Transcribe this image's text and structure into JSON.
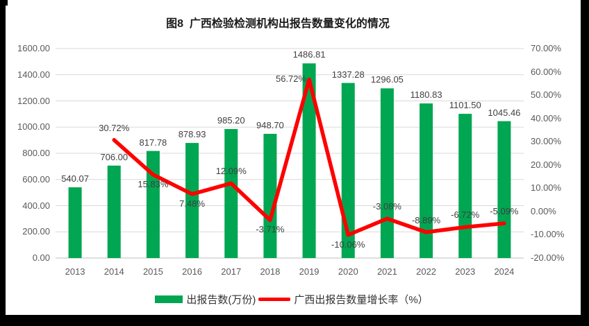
{
  "title": "图8  广西检验检测机构出报告数量变化的情况",
  "chart_data": {
    "type": "bar+line combo",
    "title": "图8  广西检验检测机构出报告数量变化的情况",
    "categories": [
      "2013",
      "2014",
      "2015",
      "2016",
      "2017",
      "2018",
      "2019",
      "2020",
      "2021",
      "2022",
      "2023",
      "2024"
    ],
    "series": [
      {
        "name": "出报告数(万份)",
        "type": "bar",
        "axis": "left",
        "values": [
          540.07,
          706.0,
          817.78,
          878.93,
          985.2,
          948.7,
          1486.81,
          1337.28,
          1296.05,
          1180.83,
          1101.5,
          1045.46
        ],
        "labels": [
          "540.07",
          "706.00",
          "817.78",
          "878.93",
          "985.20",
          "948.70",
          "1486.81",
          "1337.28",
          "1296.05",
          "1180.83",
          "1101.50",
          "1045.46"
        ]
      },
      {
        "name": "广西出报告数量增长率（%）",
        "type": "line",
        "axis": "right",
        "values": [
          null,
          30.72,
          15.83,
          7.48,
          12.09,
          -3.71,
          56.72,
          -10.06,
          -3.08,
          -8.89,
          -6.72,
          -5.09
        ],
        "labels": [
          null,
          "30.72%",
          "15.83%",
          "7.48%",
          "12.09%",
          "-3.71%",
          "56.72%",
          "-10.06%",
          "-3.08%",
          "-8.89%",
          "-6.72%",
          "-5.09%"
        ],
        "label_pos": [
          null,
          "above",
          "below",
          "below",
          "above",
          "below",
          "left",
          "below",
          "above",
          "above",
          "above",
          "above"
        ]
      }
    ],
    "left_axis": {
      "min": 0,
      "max": 1600,
      "step": 200,
      "tick_labels": [
        "0.00",
        "200.00",
        "400.00",
        "600.00",
        "800.00",
        "1000.00",
        "1200.00",
        "1400.00",
        "1600.00"
      ]
    },
    "right_axis": {
      "min": -20,
      "max": 70,
      "step": 10,
      "tick_labels": [
        "-20.00%",
        "-10.00%",
        "0.00%",
        "10.00%",
        "20.00%",
        "30.00%",
        "40.00%",
        "50.00%",
        "60.00%",
        "70.00%"
      ]
    },
    "grid": true,
    "legend_position": "bottom"
  },
  "colors": {
    "bar": "#00A651",
    "line": "#FF0000",
    "grid_line": "#D9D9D9",
    "axis_line": "#BFBFBF",
    "tick_text": "#595959",
    "data_label_text": "#404040",
    "title_text": "#1A1A1A",
    "legend_text": "#333333",
    "edge_black": "#000000",
    "background": "#FFFFFF"
  }
}
